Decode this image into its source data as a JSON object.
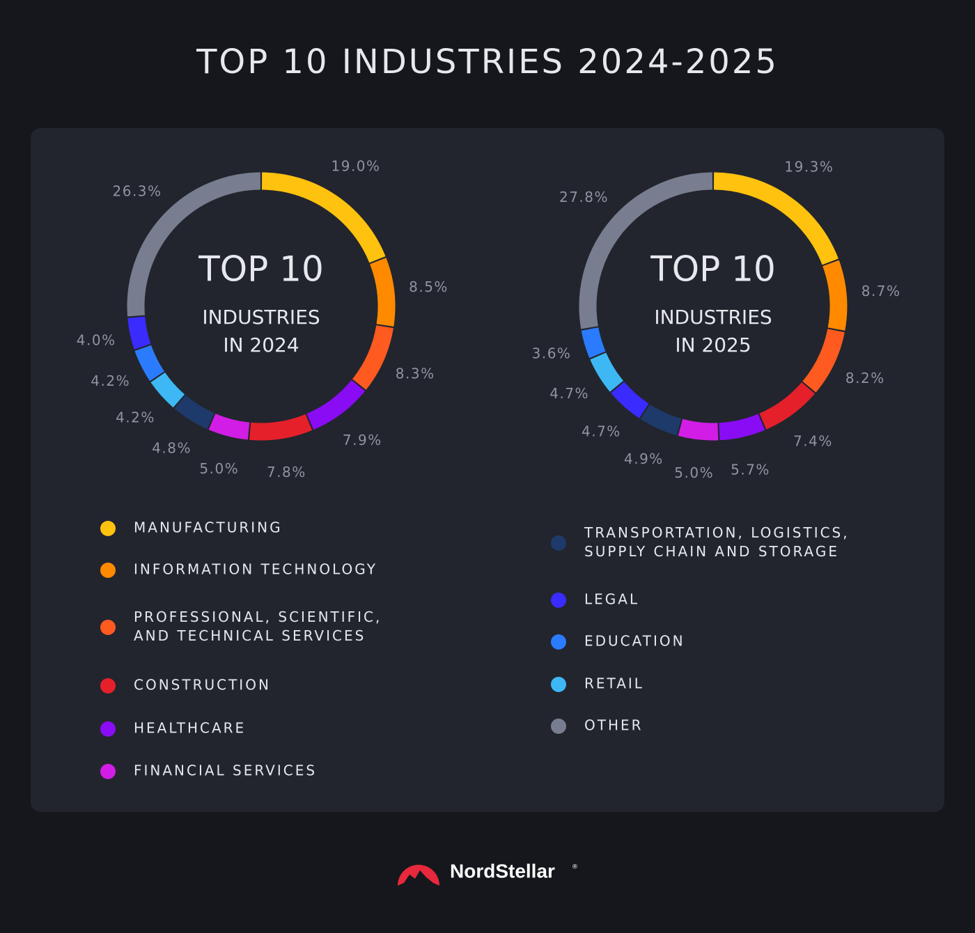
{
  "title": "TOP 10 INDUSTRIES 2024-2025",
  "chart_data": [
    {
      "type": "pie",
      "center_title": "TOP 10",
      "center_text": [
        "INDUSTRIES",
        "IN 2024"
      ],
      "values": [
        19.0,
        8.5,
        8.3,
        7.9,
        7.8,
        5.0,
        4.8,
        4.2,
        4.2,
        4.0,
        26.3
      ],
      "value_labels": [
        "19.0%",
        "8.5%",
        "8.3%",
        "7.9%",
        "7.8%",
        "5.0%",
        "4.8%",
        "4.2%",
        "4.2%",
        "4.0%",
        "26.3%"
      ],
      "colors": [
        "#ffc20e",
        "#ff8a00",
        "#ff5a1f",
        "#8a0cf5",
        "#e5202a",
        "#d21de6",
        "#1e3a6b",
        "#3db8f5",
        "#2b7bff",
        "#3a2bff",
        "#787e8f"
      ]
    },
    {
      "type": "pie",
      "center_title": "TOP 10",
      "center_text": [
        "INDUSTRIES",
        "IN 2025"
      ],
      "values": [
        19.3,
        8.7,
        8.2,
        7.4,
        5.7,
        5.0,
        4.9,
        4.7,
        4.7,
        3.6,
        27.8
      ],
      "value_labels": [
        "19.3%",
        "8.7%",
        "8.2%",
        "7.4%",
        "5.7%",
        "5.0%",
        "4.9%",
        "4.7%",
        "4.7%",
        "3.6%",
        "27.8%"
      ],
      "colors": [
        "#ffc20e",
        "#ff8a00",
        "#ff5a1f",
        "#e5202a",
        "#8a0cf5",
        "#d21de6",
        "#1e3a6b",
        "#3a2bff",
        "#3db8f5",
        "#2b7bff",
        "#787e8f"
      ]
    }
  ],
  "legend": [
    {
      "label": [
        "MANUFACTURING"
      ],
      "color": "#ffc20e"
    },
    {
      "label": [
        "INFORMATION TECHNOLOGY"
      ],
      "color": "#ff8a00"
    },
    {
      "label": [
        "PROFESSIONAL, SCIENTIFIC,",
        "AND TECHNICAL SERVICES"
      ],
      "color": "#ff5a1f"
    },
    {
      "label": [
        "CONSTRUCTION"
      ],
      "color": "#e5202a"
    },
    {
      "label": [
        "HEALTHCARE"
      ],
      "color": "#8a0cf5"
    },
    {
      "label": [
        "FINANCIAL SERVICES"
      ],
      "color": "#d21de6"
    },
    {
      "label": [
        "TRANSPORTATION, LOGISTICS,",
        "SUPPLY CHAIN AND STORAGE"
      ],
      "color": "#1e3a6b"
    },
    {
      "label": [
        "LEGAL"
      ],
      "color": "#3a2bff"
    },
    {
      "label": [
        "EDUCATION"
      ],
      "color": "#2b7bff"
    },
    {
      "label": [
        "RETAIL"
      ],
      "color": "#3db8f5"
    },
    {
      "label": [
        "OTHER"
      ],
      "color": "#787e8f"
    }
  ],
  "brand": "NordStellar",
  "brand_mark": "®"
}
